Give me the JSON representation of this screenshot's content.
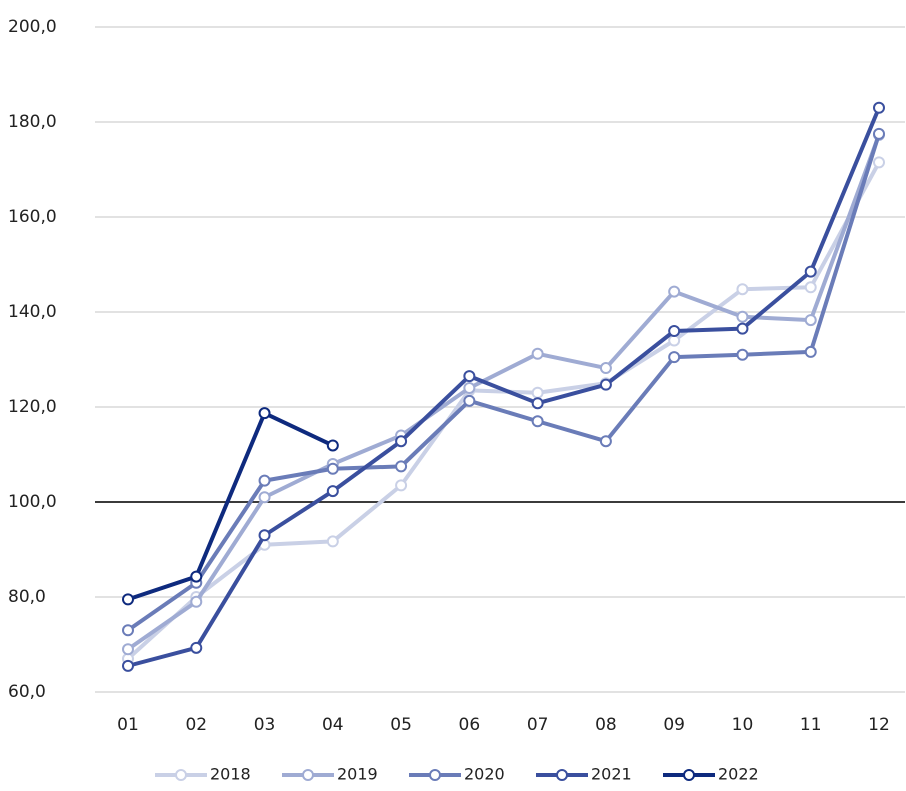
{
  "chart_data": {
    "type": "line",
    "categories": [
      "01",
      "02",
      "03",
      "04",
      "05",
      "06",
      "07",
      "08",
      "09",
      "10",
      "11",
      "12"
    ],
    "series": [
      {
        "name": "2018",
        "color": "#c9d0e6",
        "values": [
          67,
          80,
          91,
          91.7,
          103.5,
          123.5,
          123,
          125,
          134,
          144.8,
          145.2,
          171.5
        ]
      },
      {
        "name": "2019",
        "color": "#9fabd3",
        "values": [
          69,
          79,
          101,
          108,
          114,
          124,
          131.2,
          128.2,
          144.3,
          139,
          138.3,
          177.3
        ]
      },
      {
        "name": "2020",
        "color": "#6a7cb8",
        "values": [
          73,
          83,
          104.5,
          107,
          107.5,
          121.3,
          117,
          112.8,
          130.5,
          131,
          131.6,
          177.5
        ]
      },
      {
        "name": "2021",
        "color": "#3a4f9e",
        "values": [
          65.5,
          69.3,
          93,
          102.3,
          112.8,
          126.5,
          120.8,
          124.7,
          136,
          136.5,
          148.5,
          183
        ]
      },
      {
        "name": "2022",
        "color": "#0e2a7e",
        "values": [
          79.5,
          84.3,
          118.7,
          111.9,
          null,
          null,
          null,
          null,
          null,
          null,
          null,
          null
        ]
      }
    ],
    "ylim": [
      60,
      200
    ],
    "yticks": [
      {
        "value": 60,
        "label": "60,0"
      },
      {
        "value": 80,
        "label": "80,0"
      },
      {
        "value": 100,
        "label": "100,0"
      },
      {
        "value": 120,
        "label": "120,0"
      },
      {
        "value": 140,
        "label": "140,0"
      },
      {
        "value": 160,
        "label": "160,0"
      },
      {
        "value": 180,
        "label": "180,0"
      },
      {
        "value": 200,
        "label": "200,0"
      }
    ],
    "grid": true,
    "reference_line": 100,
    "legend": "bottom"
  }
}
